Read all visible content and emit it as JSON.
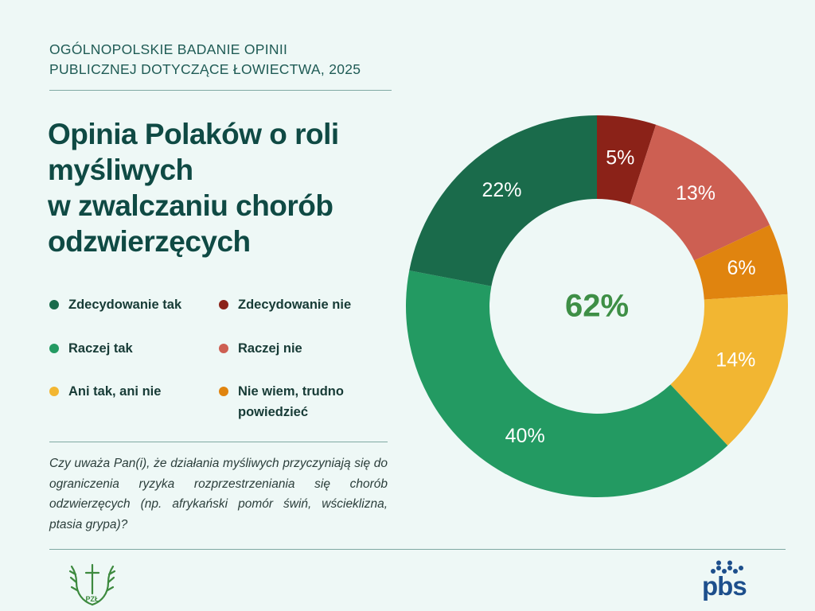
{
  "header": {
    "supertitle_line1": "OGÓLNOPOLSKIE BADANIE OPINII",
    "supertitle_line2": "PUBLICZNEJ DOTYCZĄCE ŁOWIECTWA,  2025",
    "title_line1": "Opinia Polaków o roli",
    "title_line2": "myśliwych",
    "title_line3": "w zwalczaniu chorób",
    "title_line4": "odzwierzęcych"
  },
  "question": "Czy uważa Pan(i), że działania myśliwych przyczyniają się do ograniczenia ryzyka rozprzestrzeniania się chorób odzwierzęcych (np. afrykański pomór świń, wścieklizna, ptasia grypa)?",
  "colors": {
    "strong_yes": "#1a6b4b",
    "yes": "#239a62",
    "neutral": "#f2b632",
    "strong_no": "#8b2218",
    "no": "#cd5f52",
    "dont_know": "#e0840f",
    "center_text": "#3e8f46"
  },
  "logos": {
    "left_icon": "pzl-antlers-cross-icon",
    "right_icon": "pbs-logo",
    "right_text": "pbs"
  },
  "chart_data": {
    "type": "pie",
    "title": "Opinia Polaków o roli myśliwych w zwalczaniu chorób odzwierzęcych",
    "legend_position": "left",
    "center_label": "62%",
    "slices": [
      {
        "label": "Zdecydowanie nie",
        "value": 5,
        "display": "5%",
        "color": "#8b2218"
      },
      {
        "label": "Raczej nie",
        "value": 13,
        "display": "13%",
        "color": "#cd5f52"
      },
      {
        "label": "Nie wiem, trudno powiedzieć",
        "value": 6,
        "display": "6%",
        "color": "#e0840f"
      },
      {
        "label": "Ani tak, ani nie",
        "value": 14,
        "display": "14%",
        "color": "#f2b632"
      },
      {
        "label": "Raczej tak",
        "value": 40,
        "display": "40%",
        "color": "#239a62"
      },
      {
        "label": "Zdecydowanie tak",
        "value": 22,
        "display": "22%",
        "color": "#1a6b4b"
      }
    ],
    "legend": [
      {
        "label": "Zdecydowanie tak",
        "color": "#1a6b4b"
      },
      {
        "label": "Zdecydowanie nie",
        "color": "#8b2218"
      },
      {
        "label": "Raczej tak",
        "color": "#239a62"
      },
      {
        "label": "Raczej nie",
        "color": "#cd5f52"
      },
      {
        "label": "Ani tak, ani nie",
        "color": "#f2b632"
      },
      {
        "label": "Nie wiem, trudno",
        "label_line2": "powiedzieć",
        "color": "#e0840f"
      }
    ]
  }
}
